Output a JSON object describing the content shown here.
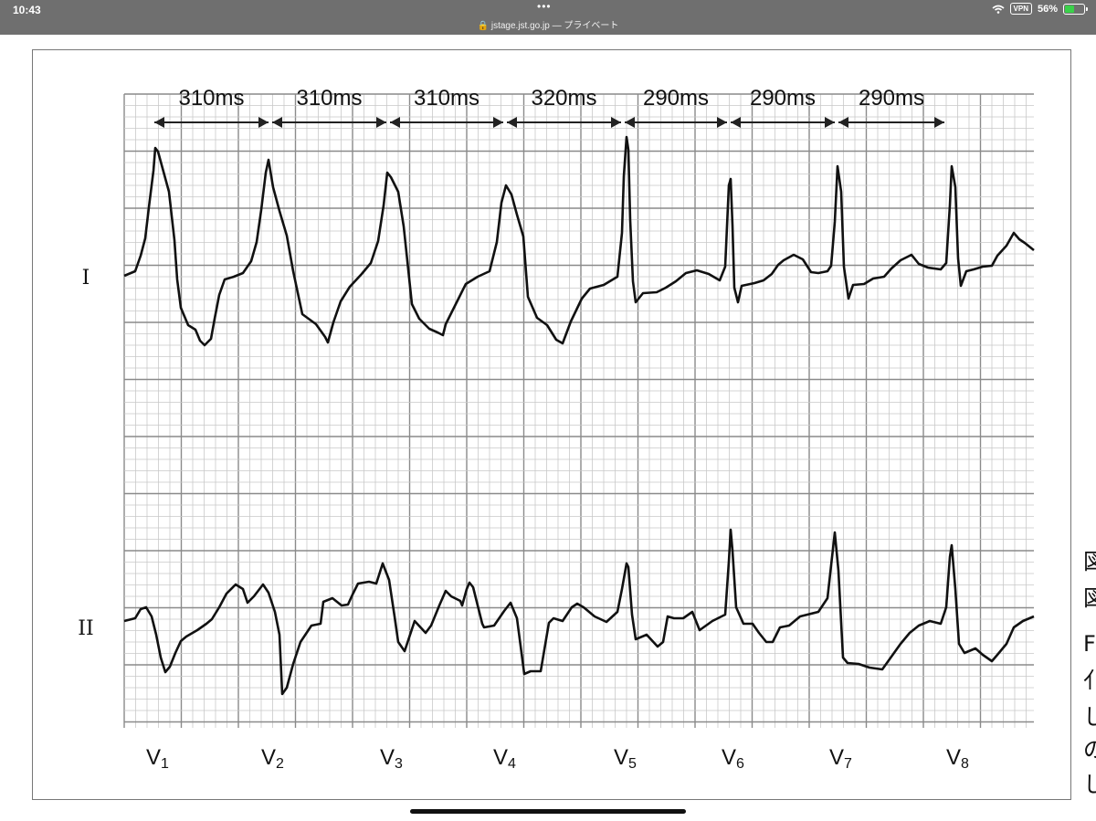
{
  "status_bar": {
    "time": "10:43",
    "dots": "•••",
    "url": "jstage.jst.go.jp — プライベート",
    "vpn": "VPN",
    "battery": "56%",
    "battery_level": 0.56,
    "icons": [
      "wifi-icon",
      "lock-icon",
      "battery-icon"
    ]
  },
  "figure": {
    "lead_labels": [
      "I",
      "II"
    ],
    "intervals": [
      "310ms",
      "310ms",
      "310ms",
      "320ms",
      "290ms",
      "290ms",
      "290ms"
    ],
    "beat_labels": [
      {
        "main": "V",
        "sub": "1"
      },
      {
        "main": "V",
        "sub": "2"
      },
      {
        "main": "V",
        "sub": "3"
      },
      {
        "main": "V",
        "sub": "4"
      },
      {
        "main": "V",
        "sub": "5"
      },
      {
        "main": "V",
        "sub": "6"
      },
      {
        "main": "V",
        "sub": "7"
      },
      {
        "main": "V",
        "sub": "8"
      }
    ]
  },
  "side_text": [
    "図",
    "図",
    "F",
    "亻",
    "し",
    "の",
    "し"
  ]
}
